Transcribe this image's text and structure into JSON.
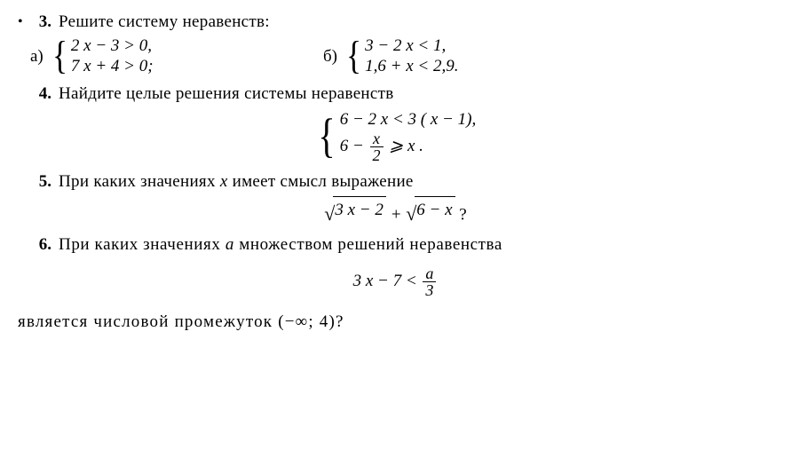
{
  "p3": {
    "bullet": "•",
    "num": "3.",
    "text": "Решите систему неравенств:",
    "a_label": "а)",
    "a_line1": "2 x − 3 > 0,",
    "a_line2": "7 x + 4 > 0;",
    "b_label": "б)",
    "b_line1": "3 − 2 x < 1,",
    "b_line2": "1,6 + x < 2,9."
  },
  "p4": {
    "num": "4.",
    "text": "Найдите целые решения системы неравенств",
    "line1_before": "6 − 2 x < 3 ( x − 1),",
    "line2_before": "6 −",
    "frac_n": "x",
    "frac_d": "2",
    "line2_after": "⩾ x ."
  },
  "p5": {
    "num": "5.",
    "text": "При каких значениях x имеет смысл выражение",
    "sqrt1": "3 x − 2",
    "plus": " + ",
    "sqrt2": "6 − x",
    "q": " ?"
  },
  "p6": {
    "num": "6.",
    "text": "При каких значениях a множеством решений неравенства",
    "lhs": "3 x − 7 < ",
    "frac_n": "a",
    "frac_d": "3",
    "tail": "является числовой промежуток (−∞; 4)?"
  }
}
